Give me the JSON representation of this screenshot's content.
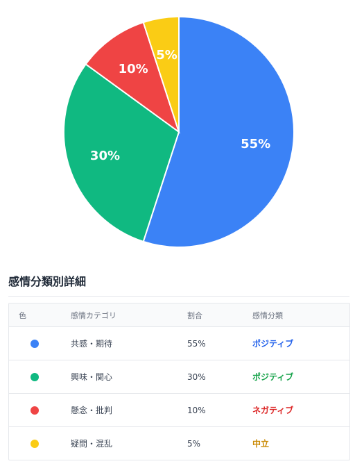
{
  "chart_data": {
    "type": "pie",
    "categories": [
      "共感・期待",
      "興味・関心",
      "懸念・批判",
      "疑問・混乱"
    ],
    "values": [
      55,
      30,
      10,
      5
    ],
    "labels": [
      "55%",
      "30%",
      "10%",
      "5%"
    ],
    "colors": [
      "#3b82f6",
      "#10b981",
      "#ef4444",
      "#facc15"
    ],
    "start": "12 o'clock",
    "direction": "clockwise"
  },
  "details": {
    "title": "感情分類別詳細",
    "headers": {
      "color": "色",
      "category": "感情カテゴリ",
      "ratio": "割合",
      "sentiment": "感情分類"
    },
    "rows": [
      {
        "color": "#3b82f6",
        "category": "共感・期待",
        "ratio": "55%",
        "sentiment": "ポジティブ",
        "sentiment_color": "#2563eb"
      },
      {
        "color": "#10b981",
        "category": "興味・関心",
        "ratio": "30%",
        "sentiment": "ポジティブ",
        "sentiment_color": "#16a34a"
      },
      {
        "color": "#ef4444",
        "category": "懸念・批判",
        "ratio": "10%",
        "sentiment": "ネガティブ",
        "sentiment_color": "#dc2626"
      },
      {
        "color": "#facc15",
        "category": "疑問・混乱",
        "ratio": "5%",
        "sentiment": "中立",
        "sentiment_color": "#ca8a04"
      }
    ]
  }
}
